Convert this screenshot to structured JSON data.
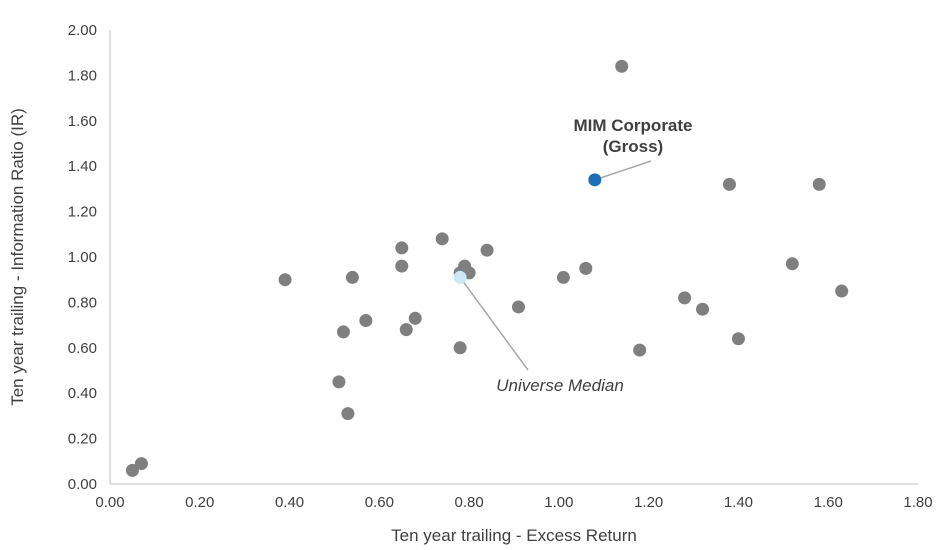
{
  "chart_data": {
    "type": "scatter",
    "title": "",
    "xlabel": "Ten year trailing - Excess Return",
    "ylabel": "Ten year trailing - Information Ratio (IR)",
    "xlim": [
      0,
      1.8
    ],
    "ylim": [
      0,
      2.0
    ],
    "x_ticks": [
      "0.00",
      "0.20",
      "0.40",
      "0.60",
      "0.80",
      "1.00",
      "1.20",
      "1.40",
      "1.60",
      "1.80"
    ],
    "y_ticks": [
      "0.00",
      "0.20",
      "0.40",
      "0.60",
      "0.80",
      "1.00",
      "1.20",
      "1.40",
      "1.60",
      "1.80",
      "2.00"
    ],
    "grid": false,
    "legend": "none",
    "series": [
      {
        "color": "#7f7f7f",
        "points": [
          {
            "x": 0.05,
            "y": 0.06
          },
          {
            "x": 0.07,
            "y": 0.09
          },
          {
            "x": 0.39,
            "y": 0.9
          },
          {
            "x": 0.51,
            "y": 0.45
          },
          {
            "x": 0.52,
            "y": 0.67
          },
          {
            "x": 0.53,
            "y": 0.31
          },
          {
            "x": 0.54,
            "y": 0.91
          },
          {
            "x": 0.57,
            "y": 0.72
          },
          {
            "x": 0.65,
            "y": 1.04
          },
          {
            "x": 0.65,
            "y": 0.96
          },
          {
            "x": 0.66,
            "y": 0.68
          },
          {
            "x": 0.68,
            "y": 0.73
          },
          {
            "x": 0.74,
            "y": 1.08
          },
          {
            "x": 0.78,
            "y": 0.6
          },
          {
            "x": 0.78,
            "y": 0.93
          },
          {
            "x": 0.79,
            "y": 0.96
          },
          {
            "x": 0.8,
            "y": 0.93
          },
          {
            "x": 0.84,
            "y": 1.03
          },
          {
            "x": 0.91,
            "y": 0.78
          },
          {
            "x": 1.01,
            "y": 0.91
          },
          {
            "x": 1.06,
            "y": 0.95
          },
          {
            "x": 1.14,
            "y": 1.84
          },
          {
            "x": 1.18,
            "y": 0.59
          },
          {
            "x": 1.28,
            "y": 0.82
          },
          {
            "x": 1.32,
            "y": 0.77
          },
          {
            "x": 1.38,
            "y": 1.32
          },
          {
            "x": 1.4,
            "y": 0.64
          },
          {
            "x": 1.52,
            "y": 0.97
          },
          {
            "x": 1.58,
            "y": 1.32
          },
          {
            "x": 1.63,
            "y": 0.85
          }
        ]
      }
    ],
    "highlights": [
      {
        "label_lines": [
          "MIM Corporate",
          "(Gross)"
        ],
        "x": 1.08,
        "y": 1.34,
        "color": "#1f6fb5",
        "style": "bold"
      },
      {
        "label_lines": [
          "Universe Median"
        ],
        "x": 0.78,
        "y": 0.91,
        "color": "#cde8f8",
        "style": "italic"
      }
    ]
  }
}
